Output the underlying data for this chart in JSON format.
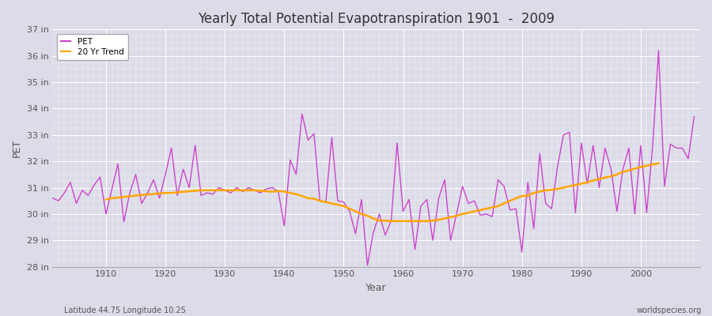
{
  "title": "Yearly Total Potential Evapotranspiration 1901  -  2009",
  "xlabel": "Year",
  "ylabel": "PET",
  "subtitle_left": "Latitude 44.75 Longitude 10.25",
  "subtitle_right": "worldspecies.org",
  "background_color": "#dcdce8",
  "plot_bg_color": "#dcdce8",
  "pet_color": "#cc44cc",
  "trend_color": "#ffa500",
  "ylim_min": 28,
  "ylim_max": 37,
  "ytick_labels": [
    "28 in",
    "29 in",
    "30 in",
    "31 in",
    "32 in",
    "33 in",
    "34 in",
    "35 in",
    "36 in",
    "37 in"
  ],
  "ytick_values": [
    28,
    29,
    30,
    31,
    32,
    33,
    34,
    35,
    36,
    37
  ],
  "years": [
    1901,
    1902,
    1903,
    1904,
    1905,
    1906,
    1907,
    1908,
    1909,
    1910,
    1911,
    1912,
    1913,
    1914,
    1915,
    1916,
    1917,
    1918,
    1919,
    1920,
    1921,
    1922,
    1923,
    1924,
    1925,
    1926,
    1927,
    1928,
    1929,
    1930,
    1931,
    1932,
    1933,
    1934,
    1935,
    1936,
    1937,
    1938,
    1939,
    1940,
    1941,
    1942,
    1943,
    1944,
    1945,
    1946,
    1947,
    1948,
    1949,
    1950,
    1951,
    1952,
    1953,
    1954,
    1955,
    1956,
    1957,
    1958,
    1959,
    1960,
    1961,
    1962,
    1963,
    1964,
    1965,
    1966,
    1967,
    1968,
    1969,
    1970,
    1971,
    1972,
    1973,
    1974,
    1975,
    1976,
    1977,
    1978,
    1979,
    1980,
    1981,
    1982,
    1983,
    1984,
    1985,
    1986,
    1987,
    1988,
    1989,
    1990,
    1991,
    1992,
    1993,
    1994,
    1995,
    1996,
    1997,
    1998,
    1999,
    2000,
    2001,
    2002,
    2003,
    2004,
    2005,
    2006,
    2007,
    2008,
    2009
  ],
  "pet_values": [
    30.6,
    30.5,
    30.8,
    31.2,
    30.4,
    30.9,
    30.7,
    31.1,
    31.4,
    30.0,
    30.95,
    31.9,
    29.7,
    30.8,
    31.5,
    30.4,
    30.8,
    31.3,
    30.6,
    31.5,
    32.5,
    30.7,
    31.7,
    31.0,
    32.6,
    30.7,
    30.8,
    30.75,
    31.0,
    30.9,
    30.8,
    31.0,
    30.85,
    31.0,
    30.9,
    30.8,
    30.95,
    31.0,
    30.85,
    29.55,
    32.05,
    31.5,
    33.8,
    32.8,
    33.05,
    30.5,
    30.45,
    32.9,
    30.5,
    30.45,
    30.1,
    29.25,
    30.55,
    28.05,
    29.3,
    30.0,
    29.2,
    29.75,
    32.7,
    30.1,
    30.55,
    28.65,
    30.3,
    30.55,
    29.0,
    30.6,
    31.3,
    29.0,
    30.0,
    31.05,
    30.4,
    30.5,
    29.95,
    30.0,
    29.9,
    31.3,
    31.05,
    30.15,
    30.2,
    28.55,
    31.2,
    29.45,
    32.3,
    30.4,
    30.2,
    31.8,
    33.0,
    33.1,
    30.05,
    32.7,
    31.15,
    32.6,
    31.0,
    32.5,
    31.7,
    30.1,
    31.7,
    32.5,
    30.0,
    32.6,
    30.05,
    32.55,
    36.2,
    31.05,
    32.65,
    32.5,
    32.5,
    32.1,
    33.7
  ],
  "trend_values": [
    null,
    null,
    null,
    null,
    null,
    null,
    null,
    null,
    null,
    30.55,
    30.6,
    30.62,
    30.65,
    30.67,
    30.7,
    30.72,
    30.74,
    30.76,
    30.78,
    30.8,
    30.8,
    30.82,
    30.84,
    30.86,
    30.88,
    30.9,
    30.9,
    30.9,
    30.9,
    30.9,
    30.9,
    30.9,
    30.9,
    30.9,
    30.9,
    30.88,
    30.86,
    30.85,
    30.87,
    30.85,
    30.8,
    30.75,
    30.68,
    30.6,
    30.58,
    30.5,
    30.45,
    30.4,
    30.35,
    30.3,
    30.2,
    30.1,
    30.0,
    29.93,
    29.83,
    29.75,
    29.75,
    29.73,
    29.73,
    29.73,
    29.73,
    29.73,
    29.73,
    29.73,
    29.75,
    29.78,
    29.83,
    29.88,
    29.93,
    30.0,
    30.05,
    30.1,
    30.15,
    30.2,
    30.25,
    30.3,
    30.4,
    30.5,
    30.6,
    30.68,
    30.7,
    30.8,
    30.85,
    30.9,
    30.92,
    30.95,
    31.0,
    31.05,
    31.1,
    31.15,
    31.2,
    31.27,
    31.33,
    31.38,
    31.43,
    31.5,
    31.6,
    31.65,
    31.72,
    31.78,
    31.83,
    31.88,
    31.92,
    null,
    null,
    null,
    null,
    null,
    null
  ]
}
